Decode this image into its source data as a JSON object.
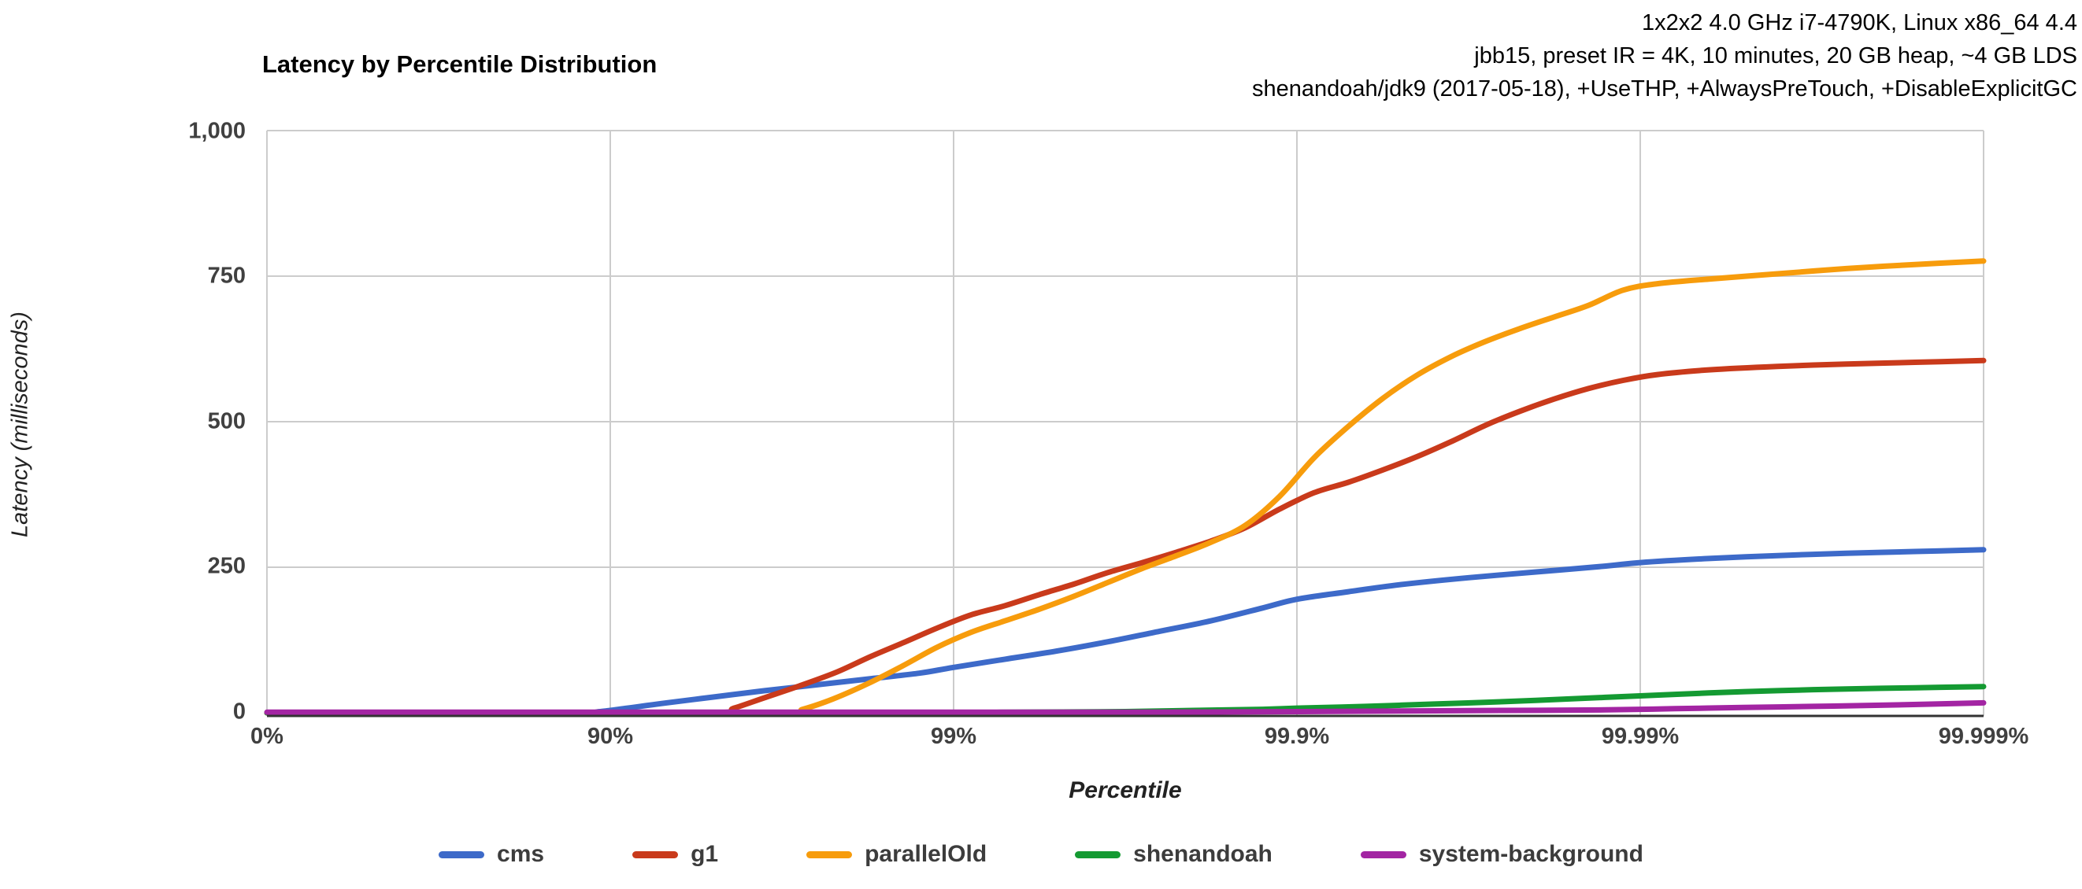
{
  "chart_data": {
    "type": "line",
    "title": "Latency by Percentile Distribution",
    "xlabel": "Percentile",
    "ylabel": "Latency (milliseconds)",
    "notes": [
      "1x2x2 4.0 GHz i7-4790K, Linux x86_64 4.4",
      "jbb15, preset IR = 4K, 10 minutes, 20 GB heap, ~4 GB LDS",
      "shenandoah/jdk9 (2017-05-18), +UseTHP, +AlwaysPreTouch, +DisableExplicitGC"
    ],
    "x_axis": {
      "label": "Percentile",
      "scale": "percentile, log decades of (1 - p); tick n is decade n",
      "ticks": [
        "0%",
        "90%",
        "99%",
        "99.9%",
        "99.99%",
        "99.999%"
      ],
      "range_decades": [
        0,
        5
      ],
      "grid": true
    },
    "y_axis": {
      "label": "Latency (milliseconds)",
      "ticks": [
        "1,000",
        "750",
        "500",
        "250",
        "0"
      ],
      "tick_values": [
        1000,
        750,
        500,
        250,
        0
      ],
      "range_ms": [
        0,
        1000
      ],
      "grid": true
    },
    "legend_position": "bottom",
    "colors": {
      "grid": "#cccccc",
      "axis_line": "#333333",
      "tick_text": "#404040",
      "title_text": "#000000"
    },
    "series": [
      {
        "name": "cms",
        "color": "#3D6AC9",
        "points_decade_ms": [
          [
            0,
            0
          ],
          [
            0.5,
            0
          ],
          [
            0.9,
            0
          ],
          [
            0.97,
            2
          ],
          [
            1.05,
            8
          ],
          [
            1.15,
            16
          ],
          [
            1.3,
            27
          ],
          [
            1.45,
            38
          ],
          [
            1.6,
            48
          ],
          [
            1.75,
            58
          ],
          [
            1.9,
            68
          ],
          [
            2.0,
            78
          ],
          [
            2.15,
            92
          ],
          [
            2.3,
            106
          ],
          [
            2.45,
            122
          ],
          [
            2.6,
            140
          ],
          [
            2.75,
            158
          ],
          [
            2.9,
            180
          ],
          [
            3.0,
            195
          ],
          [
            3.15,
            208
          ],
          [
            3.3,
            220
          ],
          [
            3.5,
            232
          ],
          [
            3.7,
            242
          ],
          [
            3.9,
            252
          ],
          [
            4.0,
            258
          ],
          [
            4.2,
            265
          ],
          [
            4.4,
            270
          ],
          [
            4.6,
            274
          ],
          [
            4.8,
            277
          ],
          [
            5.0,
            280
          ]
        ]
      },
      {
        "name": "g1",
        "color": "#C93A1B",
        "points_decade_ms": [
          [
            0,
            0
          ],
          [
            0.8,
            0
          ],
          [
            1.3,
            0
          ],
          [
            1.36,
            8
          ],
          [
            1.45,
            26
          ],
          [
            1.55,
            46
          ],
          [
            1.66,
            70
          ],
          [
            1.76,
            97
          ],
          [
            1.86,
            122
          ],
          [
            1.95,
            145
          ],
          [
            2.05,
            168
          ],
          [
            2.15,
            184
          ],
          [
            2.25,
            203
          ],
          [
            2.35,
            221
          ],
          [
            2.45,
            241
          ],
          [
            2.55,
            258
          ],
          [
            2.65,
            276
          ],
          [
            2.75,
            295
          ],
          [
            2.85,
            318
          ],
          [
            2.95,
            350
          ],
          [
            3.05,
            378
          ],
          [
            3.15,
            396
          ],
          [
            3.25,
            417
          ],
          [
            3.35,
            440
          ],
          [
            3.45,
            466
          ],
          [
            3.55,
            494
          ],
          [
            3.65,
            518
          ],
          [
            3.75,
            539
          ],
          [
            3.85,
            557
          ],
          [
            3.95,
            571
          ],
          [
            4.05,
            581
          ],
          [
            4.2,
            589
          ],
          [
            4.4,
            595
          ],
          [
            4.6,
            599
          ],
          [
            4.8,
            602
          ],
          [
            5.0,
            605
          ]
        ]
      },
      {
        "name": "parallelOld",
        "color": "#F79C0C",
        "points_decade_ms": [
          [
            0,
            0
          ],
          [
            0.8,
            0
          ],
          [
            1.5,
            0
          ],
          [
            1.56,
            6
          ],
          [
            1.65,
            24
          ],
          [
            1.75,
            50
          ],
          [
            1.85,
            80
          ],
          [
            1.95,
            112
          ],
          [
            2.05,
            138
          ],
          [
            2.15,
            158
          ],
          [
            2.25,
            178
          ],
          [
            2.35,
            200
          ],
          [
            2.45,
            224
          ],
          [
            2.55,
            248
          ],
          [
            2.65,
            270
          ],
          [
            2.75,
            293
          ],
          [
            2.85,
            322
          ],
          [
            2.95,
            372
          ],
          [
            3.05,
            438
          ],
          [
            3.15,
            492
          ],
          [
            3.25,
            540
          ],
          [
            3.35,
            580
          ],
          [
            3.45,
            612
          ],
          [
            3.55,
            638
          ],
          [
            3.65,
            660
          ],
          [
            3.75,
            680
          ],
          [
            3.85,
            700
          ],
          [
            3.95,
            726
          ],
          [
            4.05,
            737
          ],
          [
            4.2,
            745
          ],
          [
            4.4,
            754
          ],
          [
            4.6,
            763
          ],
          [
            4.8,
            770
          ],
          [
            5.0,
            776
          ]
        ]
      },
      {
        "name": "shenandoah",
        "color": "#149A32",
        "points_decade_ms": [
          [
            0,
            0
          ],
          [
            1.0,
            0
          ],
          [
            1.8,
            0
          ],
          [
            2.2,
            1
          ],
          [
            2.5,
            2
          ],
          [
            2.7,
            4
          ],
          [
            2.9,
            6
          ],
          [
            3.0,
            8
          ],
          [
            3.2,
            11
          ],
          [
            3.4,
            15
          ],
          [
            3.6,
            19
          ],
          [
            3.8,
            24
          ],
          [
            4.0,
            29
          ],
          [
            4.2,
            34
          ],
          [
            4.4,
            38
          ],
          [
            4.6,
            41
          ],
          [
            4.8,
            43
          ],
          [
            5.0,
            45
          ]
        ]
      },
      {
        "name": "system-background",
        "color": "#A325A3",
        "points_decade_ms": [
          [
            0,
            1
          ],
          [
            1.0,
            1
          ],
          [
            2.0,
            1
          ],
          [
            2.6,
            1
          ],
          [
            3.0,
            2
          ],
          [
            3.3,
            3
          ],
          [
            3.6,
            4
          ],
          [
            3.9,
            5
          ],
          [
            4.1,
            7
          ],
          [
            4.3,
            9
          ],
          [
            4.5,
            11
          ],
          [
            4.7,
            13
          ],
          [
            5.0,
            17
          ]
        ]
      }
    ]
  }
}
